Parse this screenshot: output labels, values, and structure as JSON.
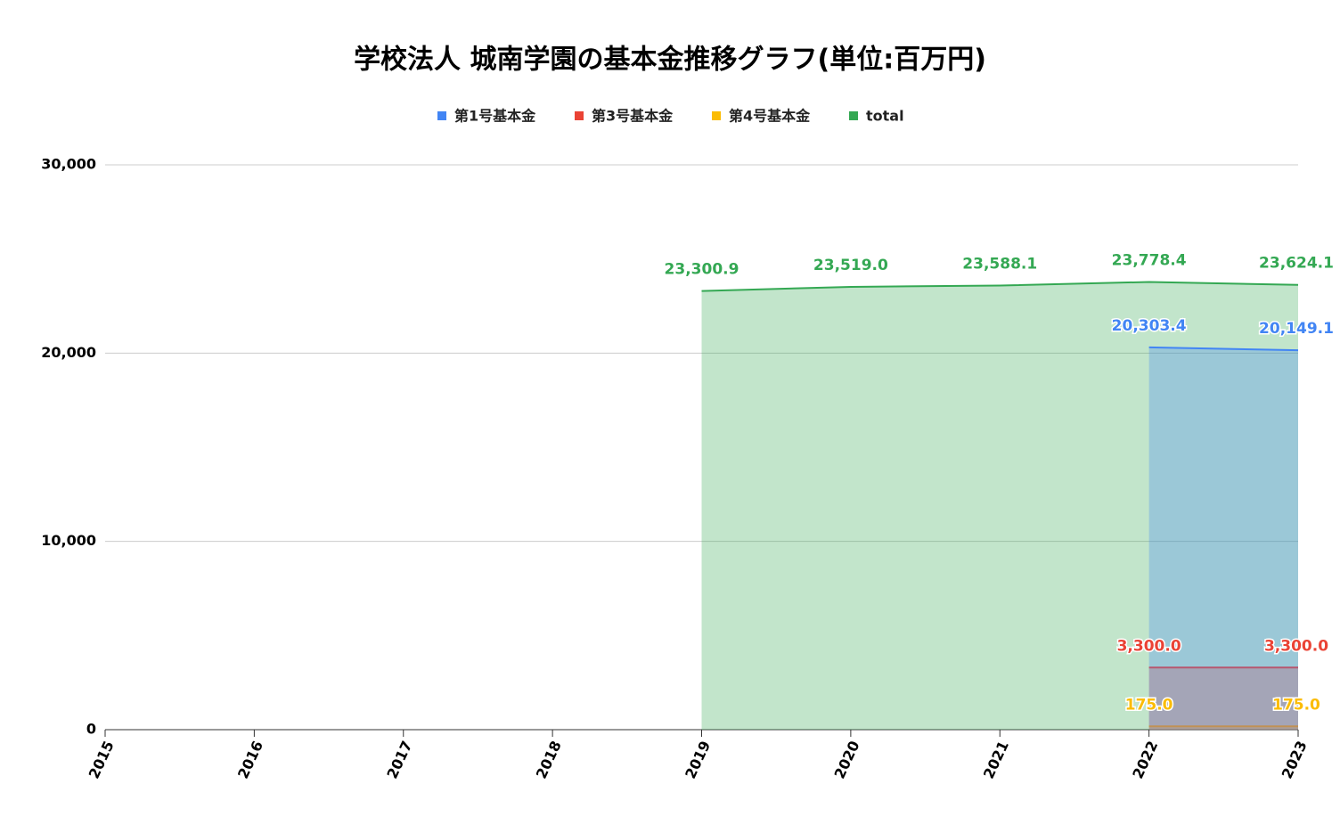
{
  "chart_data": {
    "type": "area",
    "title": "学校法人 城南学園の基本金推移グラフ(単位:百万円)",
    "x": [
      "2015",
      "2016",
      "2017",
      "2018",
      "2019",
      "2020",
      "2021",
      "2022",
      "2023"
    ],
    "series": [
      {
        "name": "第1号基本金",
        "color": "#4285f4",
        "values": [
          null,
          null,
          null,
          null,
          null,
          null,
          null,
          20303.4,
          20149.1
        ],
        "value_labels": [
          null,
          null,
          null,
          null,
          null,
          null,
          null,
          "20,303.4",
          "20,149.1"
        ]
      },
      {
        "name": "第3号基本金",
        "color": "#ea4335",
        "values": [
          null,
          null,
          null,
          null,
          null,
          null,
          null,
          3300.0,
          3300.0
        ],
        "value_labels": [
          null,
          null,
          null,
          null,
          null,
          null,
          null,
          "3,300.0",
          "3,300.0"
        ]
      },
      {
        "name": "第4号基本金",
        "color": "#fbbc04",
        "values": [
          null,
          null,
          null,
          null,
          null,
          null,
          null,
          175.0,
          175.0
        ],
        "value_labels": [
          null,
          null,
          null,
          null,
          null,
          null,
          null,
          "175.0",
          "175.0"
        ]
      },
      {
        "name": "total",
        "color": "#34a853",
        "values": [
          null,
          null,
          null,
          null,
          23300.9,
          23519.0,
          23588.1,
          23778.4,
          23624.1
        ],
        "value_labels": [
          null,
          null,
          null,
          null,
          "23,300.9",
          "23,519.0",
          "23,588.1",
          "23,778.4",
          "23,624.1"
        ]
      }
    ],
    "ylim": [
      0,
      30000
    ],
    "yticks": [
      0,
      {
        "value": 10000,
        "label": "10,000"
      },
      {
        "value": 20000,
        "label": "20,000"
      },
      {
        "value": 30000,
        "label": "30,000"
      }
    ],
    "grid": true,
    "legend": "top"
  }
}
